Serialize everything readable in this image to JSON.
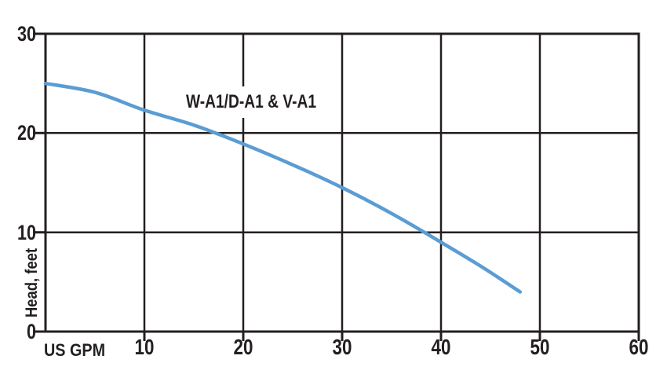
{
  "chart_data": {
    "type": "line",
    "title": "",
    "xlabel": "US GPM",
    "ylabel": "Head, feet",
    "xlim": [
      0,
      60
    ],
    "ylim": [
      0,
      30
    ],
    "x_ticks": [
      10,
      20,
      30,
      40,
      50,
      60
    ],
    "y_ticks": [
      0,
      10,
      20,
      30
    ],
    "grid": true,
    "legend": "inline-label",
    "background_color": "#FFFFFF",
    "axis_color": "#231f20",
    "line_color": "#5B9CD3",
    "series": [
      {
        "name": "W-A1/D-A1 & V-A1",
        "x": [
          0,
          5,
          10,
          15,
          20,
          25,
          30,
          35,
          40,
          44,
          48
        ],
        "y": [
          25,
          24.1,
          22.3,
          20.8,
          18.9,
          16.8,
          14.5,
          11.9,
          9.0,
          6.6,
          4.0
        ]
      }
    ]
  }
}
